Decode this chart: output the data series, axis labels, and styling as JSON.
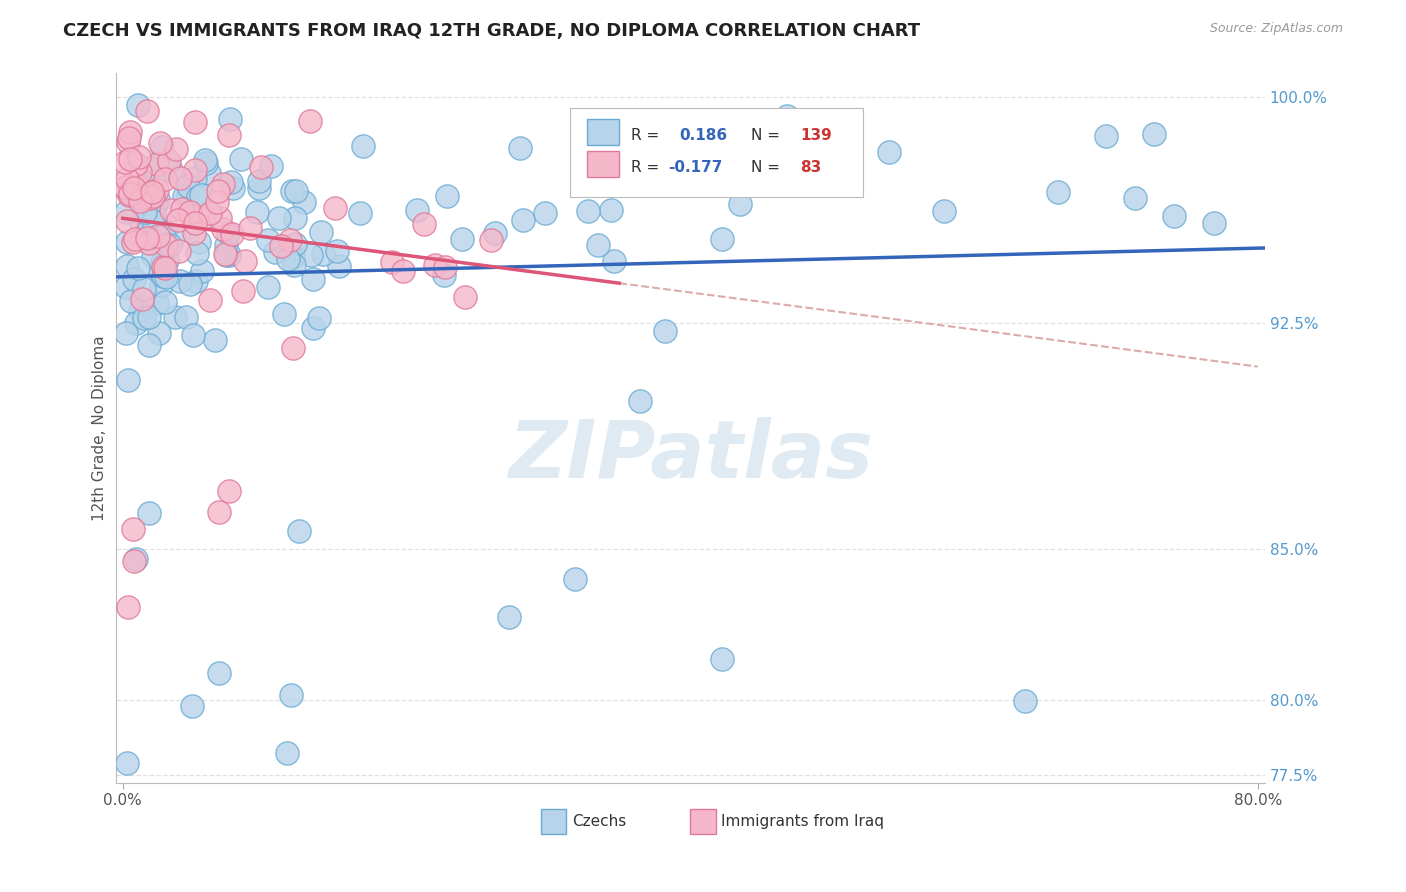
{
  "title": "CZECH VS IMMIGRANTS FROM IRAQ 12TH GRADE, NO DIPLOMA CORRELATION CHART",
  "source": "Source: ZipAtlas.com",
  "ylabel": "12th Grade, No Diploma",
  "blue_color": "#b8d4ea",
  "blue_edge": "#6aaad4",
  "pink_color": "#f5b8cb",
  "pink_edge": "#e07898",
  "trend_blue": "#3366bb",
  "trend_pink": "#dd5577",
  "trend_dashed_color": "#ddaaaa",
  "watermark_color": "#c8daea",
  "y_min": 0.7725,
  "y_max": 1.008,
  "x_min": -0.005,
  "x_max": 0.805,
  "ytick_positions": [
    0.775,
    0.8,
    0.85,
    0.925,
    1.0
  ],
  "ytick_labels": [
    "77.5%",
    "80.0%",
    "85.0%",
    "92.5%",
    "100.0%"
  ],
  "xtick_positions": [
    0.0,
    0.8
  ],
  "xtick_labels": [
    "0.0%",
    "80.0%"
  ]
}
